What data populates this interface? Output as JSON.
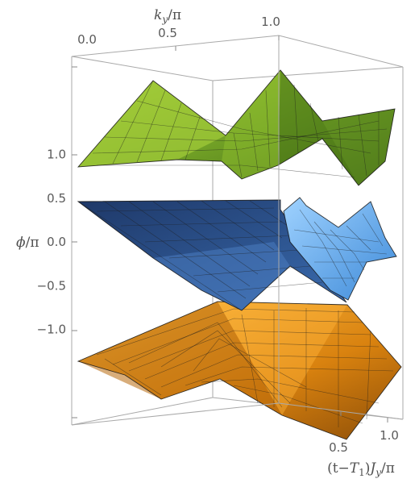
{
  "chart_data": {
    "type": "surface3d",
    "title": "",
    "axes": {
      "ky": {
        "label": "k_y/π",
        "ticks": [
          "0.0",
          "0.5",
          "1.0"
        ],
        "range": [
          0,
          1
        ]
      },
      "t": {
        "label": "(t−T₁)J_y/π",
        "ticks": [
          "0.5",
          "1.0"
        ],
        "range": [
          0,
          1
        ]
      },
      "phi": {
        "label": "ϕ/π",
        "ticks": [
          "1.0",
          "0.5",
          "0.0",
          "−0.5",
          "−1.0"
        ],
        "range": [
          -1,
          1
        ]
      }
    },
    "series": [
      {
        "color": "#7fb02e",
        "phi_range": [
          0.43,
          1.0
        ],
        "peak": "cusp at ky=0.5, t=0 and ky=1.0, t=0.5"
      },
      {
        "color": "#2b4f86",
        "phi_range": [
          -0.35,
          0.25
        ],
        "note": "light blue sheet (#6fb6f2) near ky=1"
      },
      {
        "color": "#e38a14",
        "phi_range": [
          -0.9,
          -0.35
        ],
        "peak": "cusp at ky=0.5, t=0.5"
      }
    ],
    "grid": false,
    "legend": "none"
  }
}
